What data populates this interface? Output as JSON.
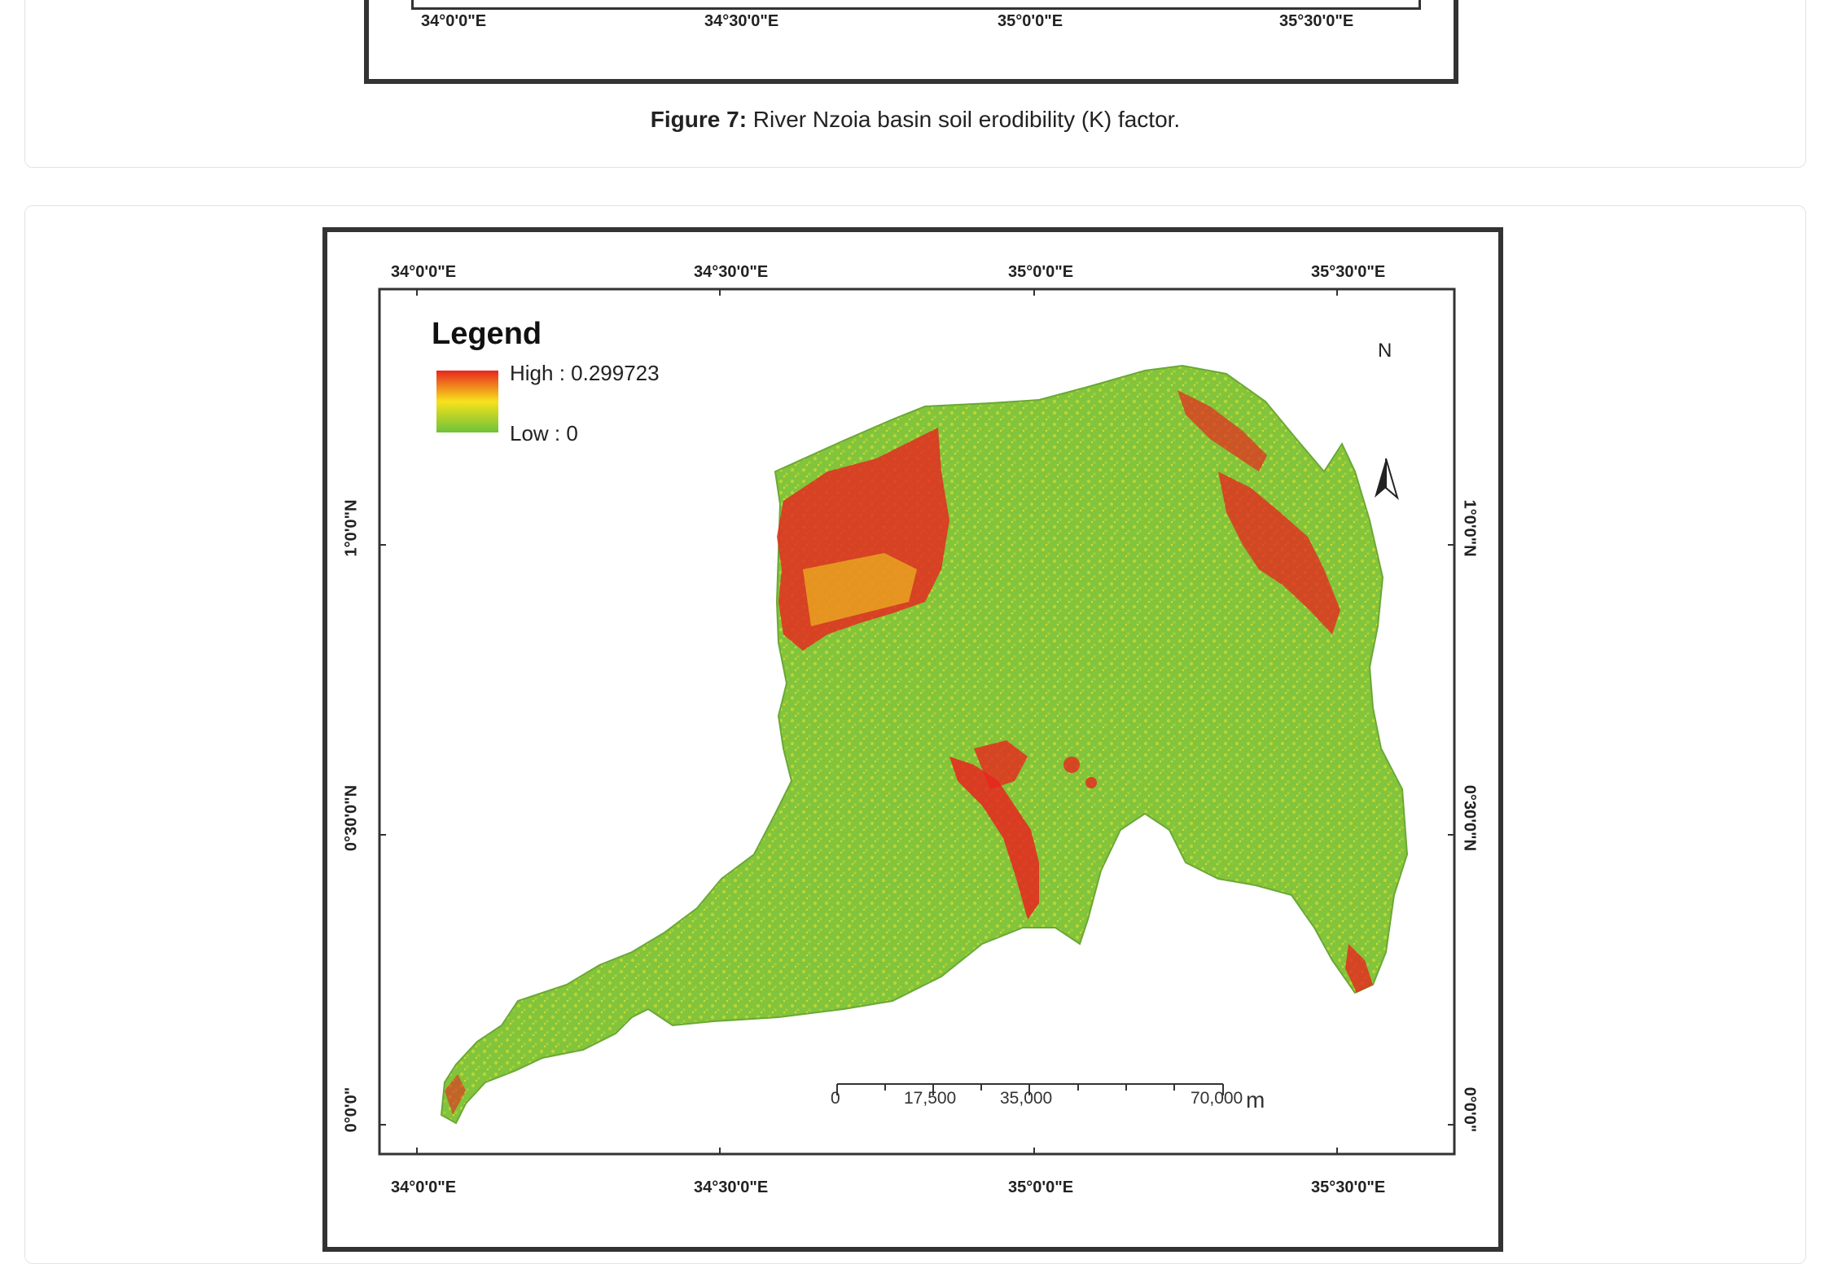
{
  "figure7": {
    "caption_label": "Figure 7:",
    "caption_text": " River Nzoia basin soil erodibility (K) factor.",
    "bottom_ticks": [
      "34°0'0\"E",
      "34°30'0\"E",
      "35°0'0\"E",
      "35°30'0\"E"
    ]
  },
  "figure8": {
    "top_ticks": [
      "34°0'0\"E",
      "34°30'0\"E",
      "35°0'0\"E",
      "35°30'0\"E"
    ],
    "bottom_ticks": [
      "34°0'0\"E",
      "34°30'0\"E",
      "35°0'0\"E",
      "35°30'0\"E"
    ],
    "left_ticks": [
      "1°0'0\"N",
      "0°30'0\"N",
      "0°0'0\""
    ],
    "right_ticks": [
      "1°0'0\"N",
      "0°30'0\"N",
      "0°0'0\""
    ],
    "legend": {
      "title": "Legend",
      "high_label": "High : 0.299723",
      "low_label": "Low : 0",
      "colors": [
        "#e8261e",
        "#f7e21c",
        "#6fc23a"
      ]
    },
    "north_label": "N",
    "scale_bar": {
      "labels": [
        "0",
        "17,500",
        "35,000",
        "70,000"
      ],
      "unit": "m"
    }
  }
}
